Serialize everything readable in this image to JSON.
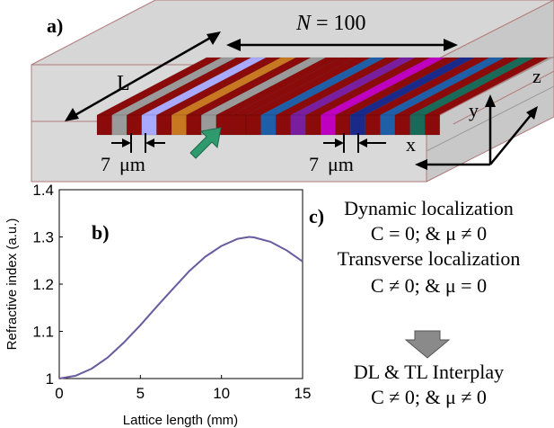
{
  "panel_a": {
    "label": "a)",
    "n_label_var": "N",
    "n_label_rest": " = 100",
    "length_label": "L",
    "width_left_num": "7",
    "width_left_unit": "μm",
    "width_right_num": "7",
    "width_right_unit": "μm",
    "axis_z": "z",
    "axis_y": "y",
    "axis_x": "x",
    "colors": {
      "box_fill": "#d6d6d6",
      "box_edge": "#b07a7a",
      "guide_red": "#8b0a0a",
      "guide_gray": "#9a9a9a",
      "guide_lilac": "#a9a9ff",
      "guide_blue": "#1f5fa8",
      "guide_purple": "#7a1ea0",
      "guide_magenta": "#c000c0",
      "guide_navy": "#1a2a8a",
      "guide_teal": "#1a6a5a",
      "guide_orange": "#c87820",
      "input_arrow": "#2e9a6e"
    },
    "icons": [
      "double-arrow-icon",
      "input-arrow-icon",
      "axis-arrow-icon"
    ]
  },
  "panel_b": {
    "label": "b)",
    "chart_data": {
      "type": "line",
      "xlabel": "Lattice length (mm)",
      "ylabel": "Refractive index (a.u.)",
      "xlim": [
        0,
        15
      ],
      "ylim": [
        1,
        1.4
      ],
      "xticks": [
        "0",
        "5",
        "10",
        "15"
      ],
      "yticks": [
        "1",
        "1.1",
        "1.2",
        "1.3",
        "1.4"
      ],
      "grid": false,
      "series": [
        {
          "color": "#6a5aa0",
          "x": [
            0,
            1,
            2,
            3,
            4,
            5,
            6,
            7,
            8,
            9,
            10,
            11,
            11.7,
            12,
            13,
            14,
            15
          ],
          "y": [
            1.0,
            1.006,
            1.021,
            1.045,
            1.077,
            1.113,
            1.152,
            1.19,
            1.227,
            1.258,
            1.281,
            1.296,
            1.3,
            1.299,
            1.29,
            1.272,
            1.248
          ]
        }
      ]
    }
  },
  "panel_c": {
    "label": "c)",
    "dl_title": "Dynamic localization",
    "dl_cond": "C = 0; & μ ≠ 0",
    "tl_title": "Transverse localization",
    "tl_cond": "C ≠ 0; & μ = 0",
    "arrow_color": "#8a8a8a",
    "interplay_title": "DL & TL Interplay",
    "interplay_cond": "C ≠ 0; & μ ≠ 0"
  }
}
